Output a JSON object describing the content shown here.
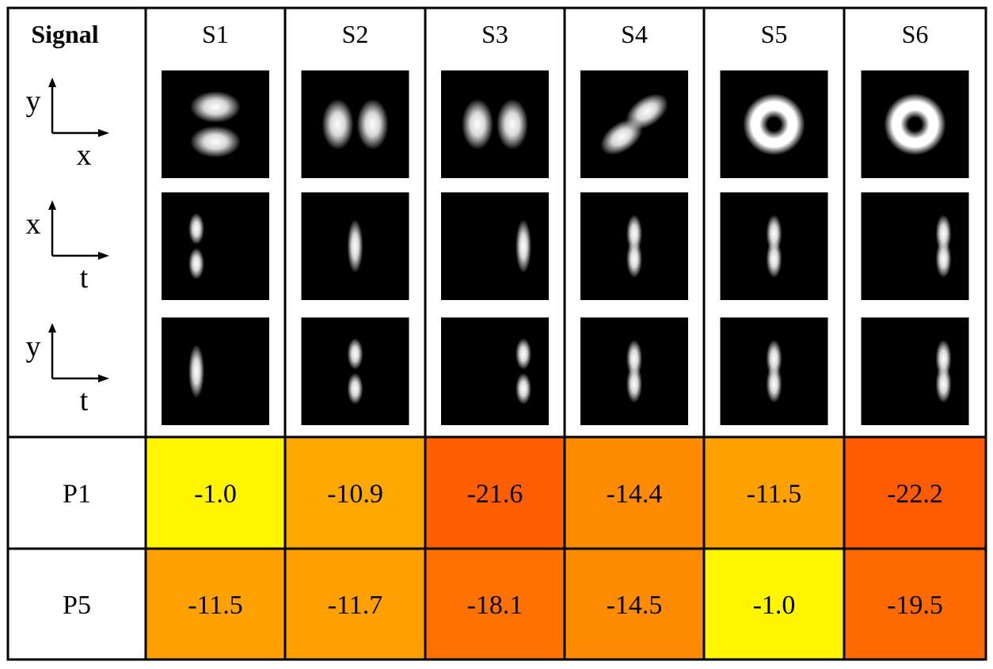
{
  "header": {
    "corner_label": "Signal",
    "columns": [
      "S1",
      "S2",
      "S3",
      "S4",
      "S5",
      "S6"
    ]
  },
  "axes": [
    {
      "vertical": "y",
      "horizontal": "x"
    },
    {
      "vertical": "x",
      "horizontal": "t"
    },
    {
      "vertical": "y",
      "horizontal": "t"
    }
  ],
  "thumbnails": [
    [
      {
        "kind": "two-lobes",
        "orientation": "vertical"
      },
      {
        "kind": "two-lobes",
        "orientation": "horizontal"
      },
      {
        "kind": "two-lobes",
        "orientation": "horizontal"
      },
      {
        "kind": "two-lobes",
        "orientation": "diagonal"
      },
      {
        "kind": "ring"
      },
      {
        "kind": "ring"
      }
    ],
    [
      {
        "kind": "temporal-double",
        "position": "left"
      },
      {
        "kind": "temporal-single",
        "position": "center"
      },
      {
        "kind": "temporal-single",
        "position": "right"
      },
      {
        "kind": "temporal-double-tight",
        "position": "center"
      },
      {
        "kind": "temporal-double-tight",
        "position": "center"
      },
      {
        "kind": "temporal-double-tight",
        "position": "right"
      }
    ],
    [
      {
        "kind": "temporal-single",
        "position": "left"
      },
      {
        "kind": "temporal-double",
        "position": "center"
      },
      {
        "kind": "temporal-double",
        "position": "right"
      },
      {
        "kind": "temporal-double-tight",
        "position": "center"
      },
      {
        "kind": "temporal-double-tight",
        "position": "center"
      },
      {
        "kind": "temporal-double-tight",
        "position": "right"
      }
    ]
  ],
  "rows": [
    {
      "label": "P1",
      "values": [
        "-1.0",
        "-10.9",
        "-21.6",
        "-14.4",
        "-11.5",
        "-22.2"
      ],
      "colors": [
        "#FFF500",
        "#FFA800",
        "#FF5F00",
        "#FF8C00",
        "#FFA100",
        "#FF5C00"
      ]
    },
    {
      "label": "P5",
      "values": [
        "-11.5",
        "-11.7",
        "-18.1",
        "-14.5",
        "-1.0",
        "-19.5"
      ],
      "colors": [
        "#FFA100",
        "#FFA000",
        "#FF7100",
        "#FF8C00",
        "#FFF500",
        "#FF6A00"
      ]
    }
  ]
}
